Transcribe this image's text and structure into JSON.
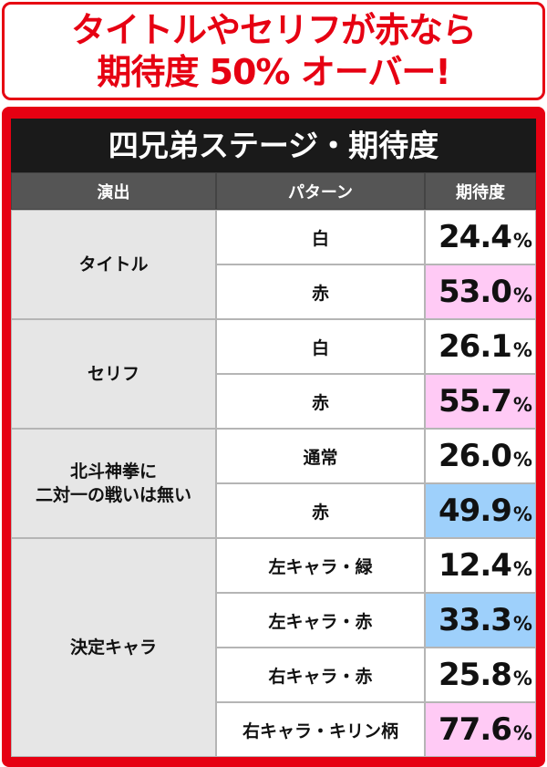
{
  "header": {
    "line1": "タイトルやセリフが赤なら",
    "line2": "期待度 50% オーバー!"
  },
  "table": {
    "title": "四兄弟ステージ・期待度",
    "columns": [
      "演出",
      "パターン",
      "期待度"
    ],
    "groups": [
      {
        "effect": "タイトル",
        "rows": [
          {
            "pattern": "白",
            "value": "24.4",
            "unit": "%",
            "highlight": "none"
          },
          {
            "pattern": "赤",
            "value": "53.0",
            "unit": "%",
            "highlight": "pink"
          }
        ]
      },
      {
        "effect": "セリフ",
        "rows": [
          {
            "pattern": "白",
            "value": "26.1",
            "unit": "%",
            "highlight": "none"
          },
          {
            "pattern": "赤",
            "value": "55.7",
            "unit": "%",
            "highlight": "pink"
          }
        ]
      },
      {
        "effect_line1": "北斗神拳に",
        "effect_line2": "二対一の戦いは無い",
        "rows": [
          {
            "pattern": "通常",
            "value": "26.0",
            "unit": "%",
            "highlight": "none"
          },
          {
            "pattern": "赤",
            "value": "49.9",
            "unit": "%",
            "highlight": "blue"
          }
        ]
      },
      {
        "effect": "決定キャラ",
        "rows": [
          {
            "pattern": "左キャラ・緑",
            "value": "12.4",
            "unit": "%",
            "highlight": "none"
          },
          {
            "pattern": "左キャラ・赤",
            "value": "33.3",
            "unit": "%",
            "highlight": "blue"
          },
          {
            "pattern": "右キャラ・赤",
            "value": "25.8",
            "unit": "%",
            "highlight": "none"
          },
          {
            "pattern": "右キャラ・キリン柄",
            "value": "77.6",
            "unit": "%",
            "highlight": "pink"
          }
        ]
      }
    ]
  },
  "colors": {
    "accent_red": "#e60012",
    "title_bar": "#1a1a1a",
    "header_row": "#555555",
    "effect_cell": "#e6e6e6",
    "highlight_pink": "#ffcaf5",
    "highlight_blue": "#9ed0fb"
  }
}
